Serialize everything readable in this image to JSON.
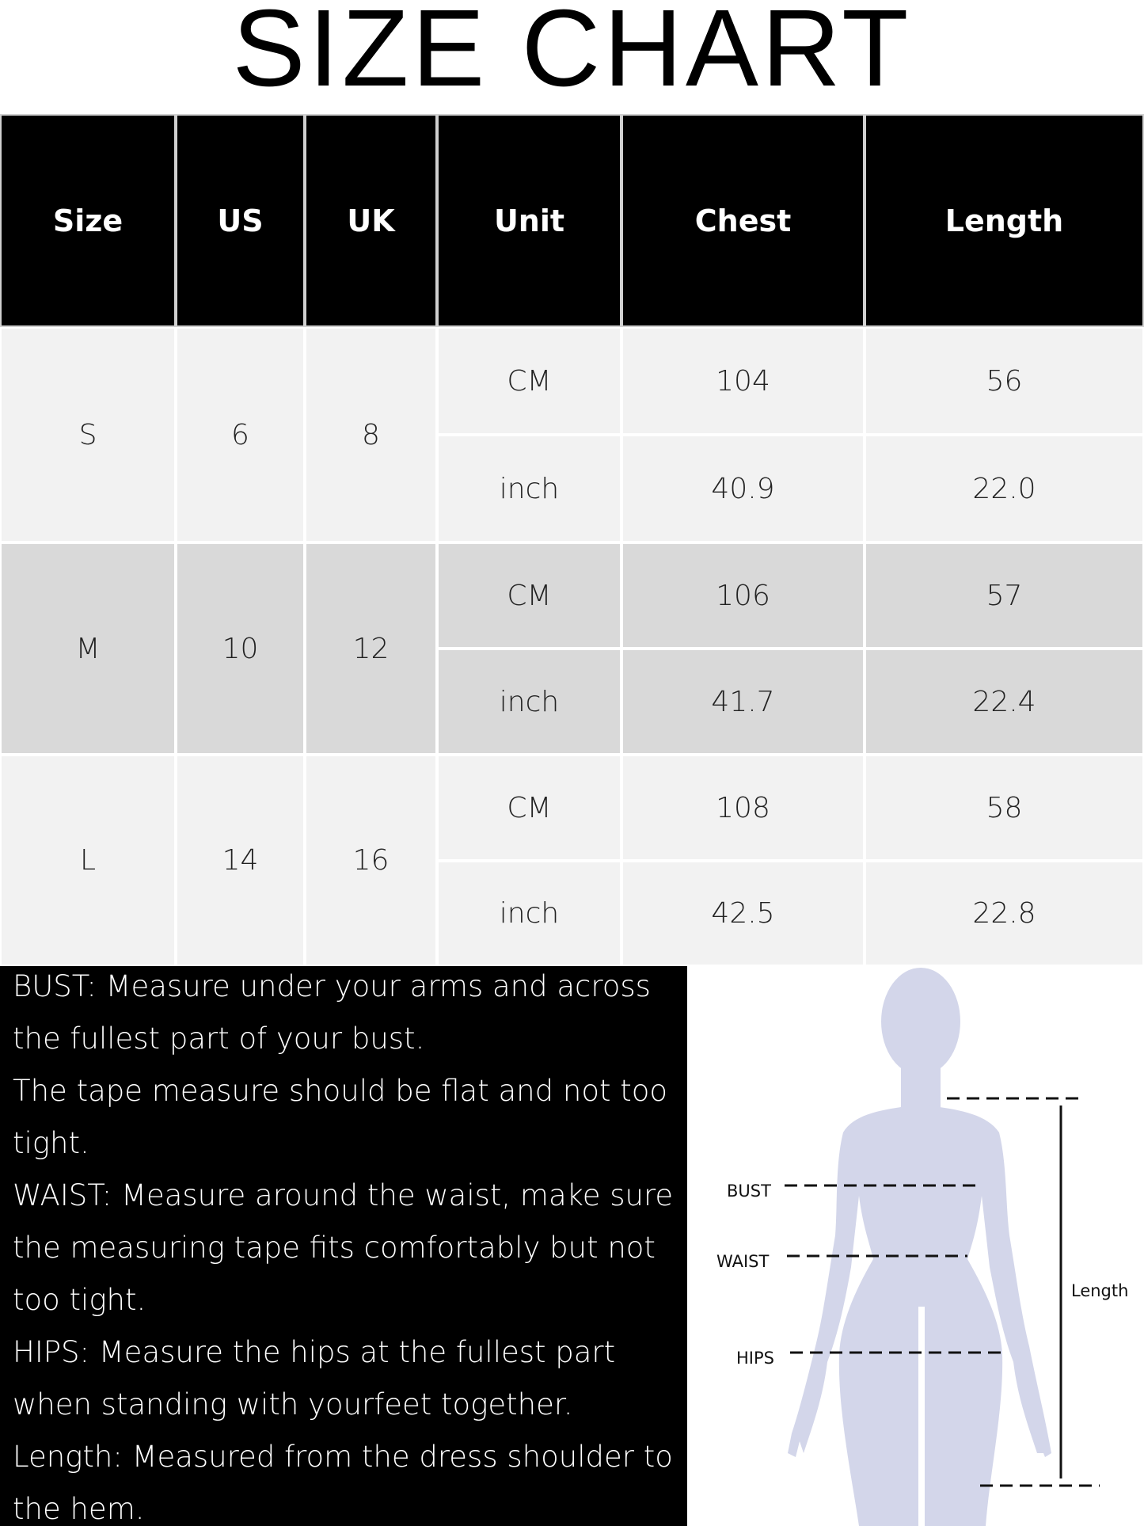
{
  "title": "SIZE CHART",
  "table": {
    "headers": [
      "Size",
      "US",
      "UK",
      "Unit",
      "Chest",
      "Length"
    ],
    "rows": [
      {
        "size": "S",
        "us": "6",
        "uk": "8",
        "cm": {
          "unit": "CM",
          "chest": "104",
          "length": "56"
        },
        "inch": {
          "unit": "inch",
          "chest": "40.9",
          "length": "22.0"
        }
      },
      {
        "size": "M",
        "us": "10",
        "uk": "12",
        "cm": {
          "unit": "CM",
          "chest": "106",
          "length": "57"
        },
        "inch": {
          "unit": "inch",
          "chest": "41.7",
          "length": "22.4"
        }
      },
      {
        "size": "L",
        "us": "14",
        "uk": "16",
        "cm": {
          "unit": "CM",
          "chest": "108",
          "length": "58"
        },
        "inch": {
          "unit": "inch",
          "chest": "42.5",
          "length": "22.8"
        }
      }
    ]
  },
  "notes": [
    "BUST: Measure under your arms and across",
    "the fullest part of your bust.",
    "The tape measure should be flat and not too",
    "tight.",
    "WAIST: Measure around the waist, make sure",
    "the measuring tape fits comfortably but not",
    "too tight.",
    "HIPS: Measure the hips at the fullest part",
    "when standing with yourfeet together.",
    "Length: Measured from the dress shoulder to",
    "the hem."
  ],
  "figure": {
    "bust_label": "BUST",
    "waist_label": "WAIST",
    "hips_label": "HIPS",
    "length_label": "Length",
    "silhouette_color": "#d3d6ea"
  },
  "colors": {
    "header_bg": "#000000",
    "row_light": "#f2f2f2",
    "row_dark": "#d9d9d9"
  }
}
